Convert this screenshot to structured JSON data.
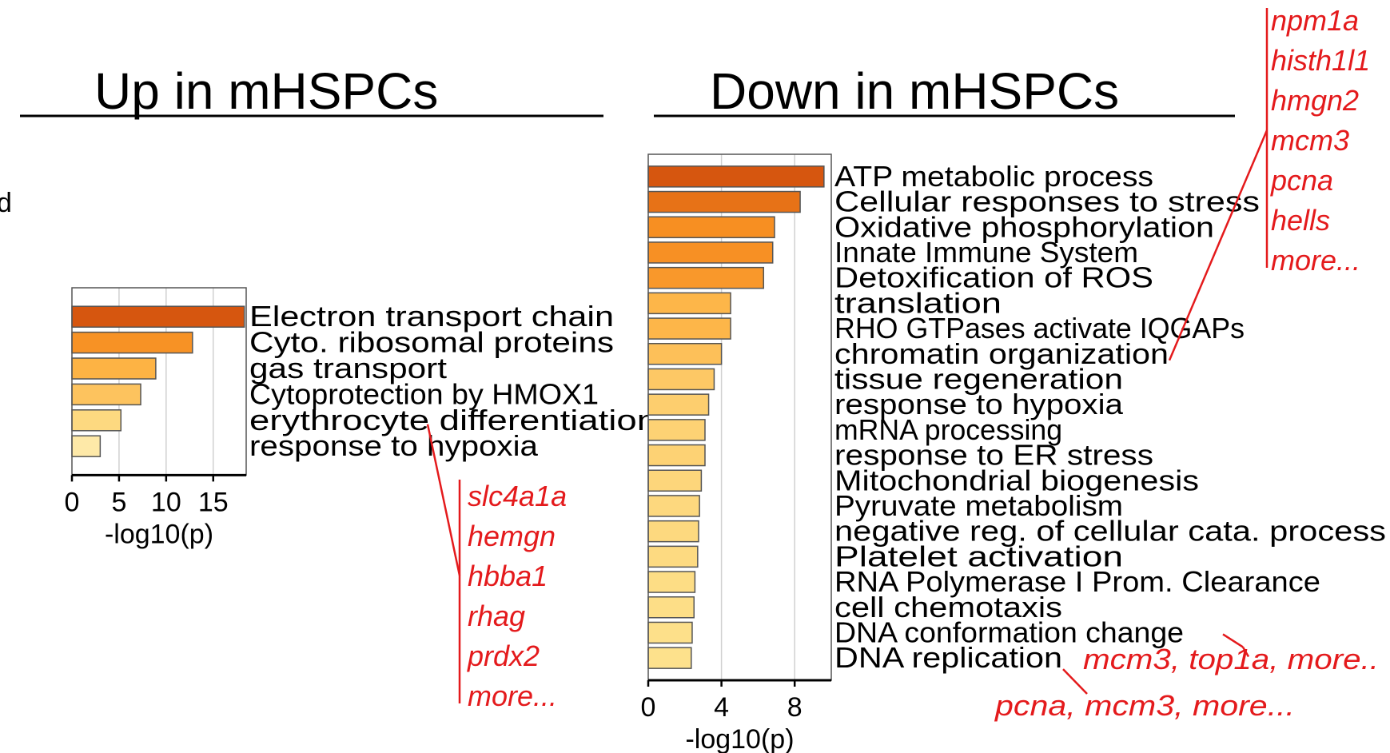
{
  "colors": {
    "bar_scale": [
      "#fffbe0",
      "#fde08a",
      "#fdb040",
      "#f68a1e",
      "#d6560f"
    ],
    "annotation": "#e41a1c"
  },
  "left_clipped_text": "d",
  "chart_data": [
    {
      "type": "bar",
      "orientation": "horizontal",
      "title": "Up in mHSPCs",
      "xlabel": "-log10(p)",
      "xlim": [
        0,
        18.5
      ],
      "xticks": [
        0,
        5,
        10,
        15
      ],
      "grid": true,
      "categories": [
        "Electron transport chain",
        "Cyto. ribosomal proteins",
        "gas transport",
        "Cytoprotection by HMOX1",
        "erythrocyte differentiation",
        "response to hypoxia"
      ],
      "values": [
        18.3,
        12.8,
        8.9,
        7.3,
        5.2,
        3.0
      ],
      "annotations": [
        {
          "term": "erythrocyte differentiation",
          "genes": [
            "slc4a1a",
            "hemgn",
            "hbba1",
            "rhag",
            "prdx2",
            "more..."
          ]
        }
      ]
    },
    {
      "type": "bar",
      "orientation": "horizontal",
      "title": "Down in mHSPCs",
      "xlabel": "-log10(p)",
      "xlim": [
        0,
        10
      ],
      "xticks": [
        0,
        4,
        8
      ],
      "grid": true,
      "categories": [
        "ATP metabolic process",
        "Cellular responses to stress",
        "Oxidative phosphorylation",
        "Innate Immune System",
        "Detoxification of ROS",
        "translation",
        "RHO GTPases activate IQGAPs",
        "chromatin organization",
        "tissue regeneration",
        "response to hypoxia",
        "mRNA processing",
        "response to ER stress",
        "Mitochondrial biogenesis",
        "Pyruvate metabolism",
        "negative reg. of cellular cata. process",
        "Platelet activation",
        "RNA Polymerase I Prom. Clearance",
        "cell chemotaxis",
        "DNA conformation change",
        "DNA replication"
      ],
      "values": [
        9.6,
        8.3,
        6.9,
        6.8,
        6.3,
        4.5,
        4.5,
        4.0,
        3.6,
        3.3,
        3.1,
        3.1,
        2.9,
        2.8,
        2.75,
        2.7,
        2.55,
        2.5,
        2.4,
        2.35
      ],
      "annotations": [
        {
          "term": "chromatin organization",
          "genes": [
            "npm1a",
            "histh1l1",
            "hmgn2",
            "mcm3",
            "pcna",
            "hells",
            "more..."
          ]
        },
        {
          "term": "DNA conformation change",
          "text": "mcm3, top1a, more.."
        },
        {
          "term": "DNA replication",
          "text": "pcna, mcm3, more..."
        }
      ]
    }
  ]
}
